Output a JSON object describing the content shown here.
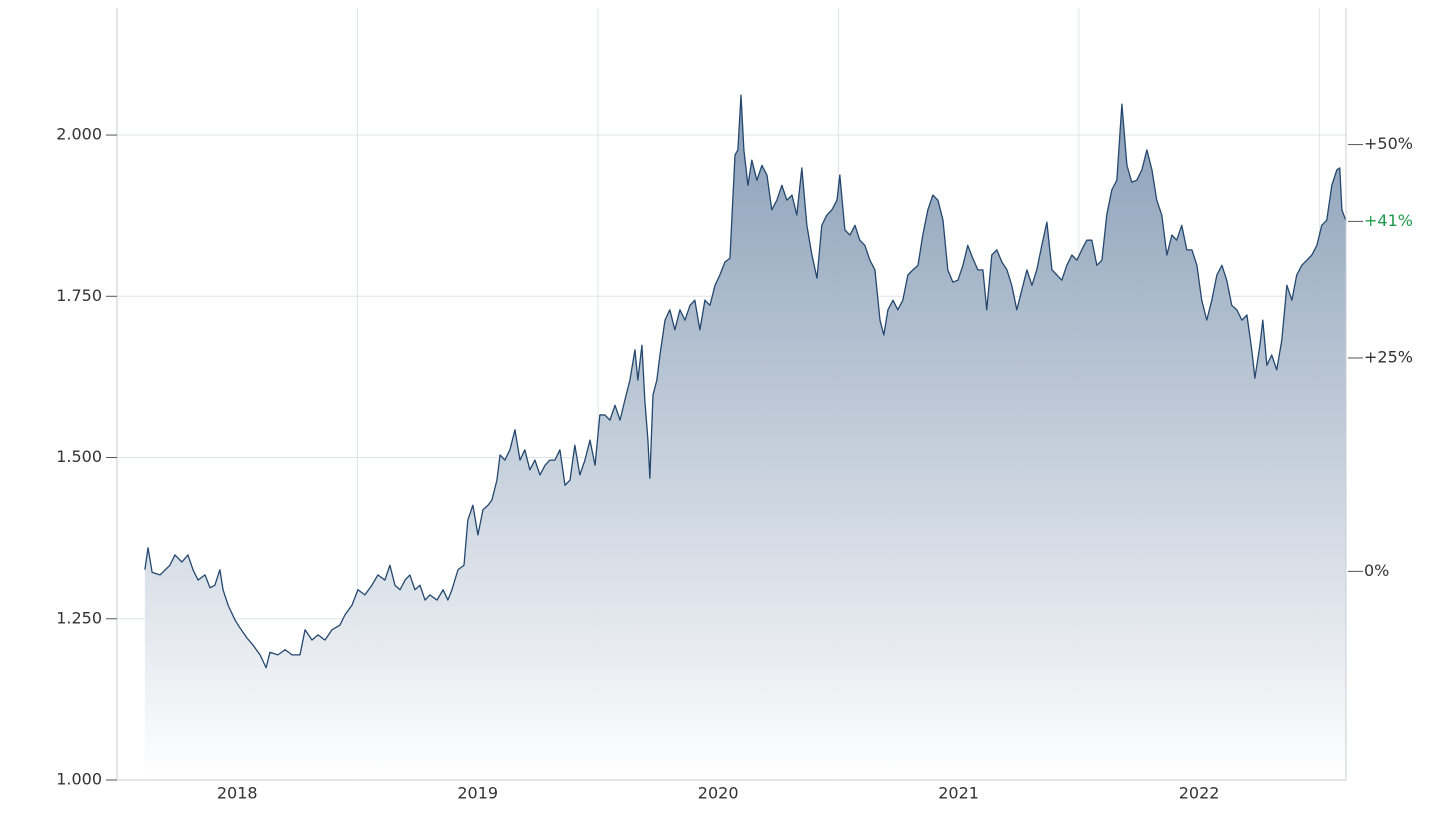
{
  "chart_data": {
    "type": "area",
    "x": [
      2017.616,
      2017.629,
      2017.646,
      2017.679,
      2017.72,
      2017.741,
      2017.77,
      2017.795,
      2017.816,
      2017.837,
      2017.866,
      2017.887,
      2017.907,
      2017.928,
      2017.941,
      2017.962,
      2017.991,
      2018.011,
      2018.041,
      2018.066,
      2018.095,
      2018.12,
      2018.136,
      2018.169,
      2018.199,
      2018.228,
      2018.261,
      2018.282,
      2018.311,
      2018.336,
      2018.365,
      2018.394,
      2018.427,
      2018.448,
      2018.477,
      2018.502,
      2018.531,
      2018.56,
      2018.585,
      2018.614,
      2018.635,
      2018.656,
      2018.677,
      2018.698,
      2018.718,
      2018.739,
      2018.76,
      2018.781,
      2018.801,
      2018.831,
      2018.856,
      2018.876,
      2018.893,
      2018.918,
      2018.943,
      2018.959,
      2018.98,
      2019.001,
      2019.022,
      2019.043,
      2019.059,
      2019.08,
      2019.093,
      2019.113,
      2019.134,
      2019.155,
      2019.176,
      2019.196,
      2019.217,
      2019.238,
      2019.259,
      2019.28,
      2019.3,
      2019.321,
      2019.342,
      2019.363,
      2019.384,
      2019.404,
      2019.425,
      2019.446,
      2019.467,
      2019.488,
      2019.508,
      2019.529,
      2019.55,
      2019.571,
      2019.592,
      2019.612,
      2019.633,
      2019.654,
      2019.666,
      2019.683,
      2019.695,
      2019.708,
      2019.716,
      2019.729,
      2019.745,
      2019.758,
      2019.779,
      2019.799,
      2019.82,
      2019.841,
      2019.862,
      2019.883,
      2019.903,
      2019.924,
      2019.945,
      2019.966,
      2019.987,
      2020.007,
      2020.028,
      2020.049,
      2020.07,
      2020.082,
      2020.095,
      2020.107,
      2020.124,
      2020.14,
      2020.161,
      2020.182,
      2020.203,
      2020.223,
      2020.244,
      2020.265,
      2020.286,
      2020.307,
      2020.327,
      2020.348,
      2020.369,
      2020.39,
      2020.411,
      2020.431,
      2020.452,
      2020.473,
      2020.494,
      2020.506,
      2020.527,
      2020.548,
      2020.569,
      2020.589,
      2020.61,
      2020.631,
      2020.652,
      2020.673,
      2020.689,
      2020.706,
      2020.727,
      2020.747,
      2020.768,
      2020.789,
      2020.81,
      2020.831,
      2020.851,
      2020.872,
      2020.893,
      2020.914,
      2020.935,
      2020.955,
      2020.976,
      2020.997,
      2021.018,
      2021.038,
      2021.059,
      2021.08,
      2021.101,
      2021.117,
      2021.138,
      2021.159,
      2021.18,
      2021.201,
      2021.221,
      2021.242,
      2021.263,
      2021.284,
      2021.305,
      2021.325,
      2021.346,
      2021.367,
      2021.388,
      2021.409,
      2021.429,
      2021.45,
      2021.471,
      2021.492,
      2021.512,
      2021.533,
      2021.554,
      2021.575,
      2021.596,
      2021.616,
      2021.637,
      2021.658,
      2021.679,
      2021.7,
      2021.72,
      2021.741,
      2021.762,
      2021.783,
      2021.804,
      2021.824,
      2021.845,
      2021.866,
      2021.887,
      2021.907,
      2021.928,
      2021.949,
      2021.97,
      2021.991,
      2022.011,
      2022.032,
      2022.053,
      2022.074,
      2022.095,
      2022.115,
      2022.136,
      2022.157,
      2022.178,
      2022.199,
      2022.219,
      2022.232,
      2022.253,
      2022.265,
      2022.282,
      2022.302,
      2022.323,
      2022.344,
      2022.365,
      2022.386,
      2022.406,
      2022.427,
      2022.448,
      2022.469,
      2022.49,
      2022.51,
      2022.531,
      2022.552,
      2022.573,
      2022.585,
      2022.594,
      2022.61
    ],
    "values": [
      1.326,
      1.36,
      1.322,
      1.318,
      1.333,
      1.349,
      1.338,
      1.349,
      1.326,
      1.31,
      1.318,
      1.298,
      1.302,
      1.326,
      1.295,
      1.271,
      1.248,
      1.236,
      1.22,
      1.209,
      1.194,
      1.174,
      1.198,
      1.194,
      1.202,
      1.194,
      1.194,
      1.233,
      1.217,
      1.225,
      1.217,
      1.233,
      1.24,
      1.256,
      1.271,
      1.295,
      1.287,
      1.302,
      1.318,
      1.31,
      1.333,
      1.302,
      1.295,
      1.31,
      1.318,
      1.295,
      1.302,
      1.279,
      1.287,
      1.279,
      1.295,
      1.279,
      1.295,
      1.326,
      1.333,
      1.403,
      1.426,
      1.38,
      1.419,
      1.426,
      1.434,
      1.465,
      1.504,
      1.496,
      1.512,
      1.543,
      1.496,
      1.512,
      1.481,
      1.496,
      1.473,
      1.488,
      1.496,
      1.496,
      1.512,
      1.457,
      1.465,
      1.519,
      1.473,
      1.496,
      1.527,
      1.488,
      1.566,
      1.566,
      1.558,
      1.581,
      1.558,
      1.589,
      1.62,
      1.667,
      1.62,
      1.674,
      1.589,
      1.527,
      1.468,
      1.597,
      1.62,
      1.659,
      1.713,
      1.729,
      1.698,
      1.729,
      1.713,
      1.736,
      1.744,
      1.698,
      1.744,
      1.736,
      1.767,
      1.783,
      1.803,
      1.809,
      1.969,
      1.977,
      2.062,
      1.977,
      1.922,
      1.961,
      1.93,
      1.953,
      1.938,
      1.884,
      1.899,
      1.922,
      1.899,
      1.907,
      1.876,
      1.949,
      1.86,
      1.814,
      1.778,
      1.86,
      1.876,
      1.884,
      1.899,
      1.938,
      1.853,
      1.845,
      1.86,
      1.837,
      1.829,
      1.806,
      1.791,
      1.713,
      1.69,
      1.729,
      1.744,
      1.729,
      1.744,
      1.783,
      1.791,
      1.798,
      1.845,
      1.884,
      1.907,
      1.899,
      1.868,
      1.791,
      1.772,
      1.775,
      1.798,
      1.829,
      1.809,
      1.791,
      1.791,
      1.729,
      1.814,
      1.822,
      1.803,
      1.791,
      1.767,
      1.729,
      1.76,
      1.791,
      1.767,
      1.791,
      1.829,
      1.865,
      1.791,
      1.783,
      1.775,
      1.798,
      1.814,
      1.806,
      1.822,
      1.837,
      1.837,
      1.798,
      1.806,
      1.876,
      1.915,
      1.93,
      2.048,
      1.953,
      1.927,
      1.93,
      1.946,
      1.977,
      1.946,
      1.899,
      1.876,
      1.814,
      1.845,
      1.837,
      1.86,
      1.822,
      1.822,
      1.798,
      1.744,
      1.713,
      1.744,
      1.783,
      1.798,
      1.775,
      1.736,
      1.729,
      1.713,
      1.721,
      1.667,
      1.623,
      1.674,
      1.713,
      1.643,
      1.659,
      1.636,
      1.682,
      1.767,
      1.744,
      1.783,
      1.798,
      1.806,
      1.814,
      1.829,
      1.86,
      1.868,
      1.922,
      1.946,
      1.949,
      1.884,
      1.868
    ],
    "color": "#23476e",
    "fill_color": "#8399b3",
    "xlim": [
      2017.5,
      2022.611
    ],
    "xticks": [
      2018,
      2019,
      2020,
      2021,
      2022
    ],
    "xgrid": [
      2018.5,
      2019.5,
      2020.5,
      2021.5,
      2022.5
    ],
    "ylim": [
      1,
      2.197
    ],
    "yticks": [
      {
        "value": 1,
        "label": "1.000"
      },
      {
        "value": 1.25,
        "label": "1.250"
      },
      {
        "value": 1.5,
        "label": "1.500"
      },
      {
        "value": 1.75,
        "label": "1.750"
      },
      {
        "value": 2,
        "label": "2.000"
      }
    ],
    "y2lim": [
      -24.44,
      66.0
    ],
    "y2ticks": [
      {
        "value": 0,
        "label": "0%"
      },
      {
        "value": 25,
        "label": "+25%"
      },
      {
        "value": 50,
        "label": "+50%"
      }
    ],
    "last_change": {
      "value": 41,
      "label": "+41%",
      "color": "#1e9a4a"
    },
    "grid": true
  }
}
